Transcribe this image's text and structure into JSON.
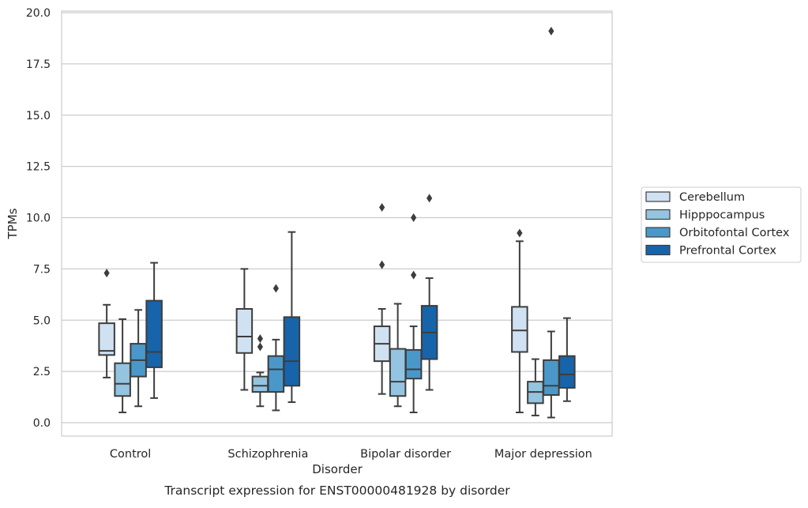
{
  "chart_data": {
    "type": "box",
    "title": "",
    "caption": "Transcript expression for ENST00000481928 by disorder",
    "xlabel": "Disorder",
    "ylabel": "TPMs",
    "ylim": [
      -0.65,
      20.2
    ],
    "yticks": [
      0.0,
      2.5,
      5.0,
      7.5,
      10.0,
      12.5,
      15.0,
      17.5,
      20.0
    ],
    "ytick_labels": [
      "0.0",
      "2.5",
      "5.0",
      "7.5",
      "10.0",
      "12.5",
      "15.0",
      "17.5",
      "20.0"
    ],
    "grid": "horizontal",
    "legend_position": "right",
    "categories": [
      "Control",
      "Schizophrenia",
      "Bipolar disorder",
      "Major depression"
    ],
    "series": [
      {
        "name": "Cerebellum",
        "color": "#d0e1f2",
        "boxes": [
          {
            "whislo": 2.2,
            "q1": 3.3,
            "med": 3.5,
            "q3": 4.85,
            "whishi": 5.75,
            "fliers": [
              7.3
            ]
          },
          {
            "whislo": 1.6,
            "q1": 3.4,
            "med": 4.2,
            "q3": 5.55,
            "whishi": 7.5,
            "fliers": []
          },
          {
            "whislo": 1.4,
            "q1": 3.0,
            "med": 3.85,
            "q3": 4.7,
            "whishi": 5.55,
            "fliers": [
              7.7,
              10.5
            ]
          },
          {
            "whislo": 0.5,
            "q1": 3.45,
            "med": 4.5,
            "q3": 5.65,
            "whishi": 8.85,
            "fliers": [
              9.25
            ]
          }
        ]
      },
      {
        "name": "Hipppocampus",
        "color": "#94c4df",
        "boxes": [
          {
            "whislo": 0.5,
            "q1": 1.3,
            "med": 1.9,
            "q3": 2.9,
            "whishi": 5.05,
            "fliers": []
          },
          {
            "whislo": 0.8,
            "q1": 1.5,
            "med": 1.8,
            "q3": 2.25,
            "whishi": 2.45,
            "fliers": [
              3.7,
              4.1
            ]
          },
          {
            "whislo": 0.8,
            "q1": 1.3,
            "med": 2.0,
            "q3": 3.6,
            "whishi": 5.8,
            "fliers": []
          },
          {
            "whislo": 0.35,
            "q1": 0.95,
            "med": 1.5,
            "q3": 2.0,
            "whishi": 3.1,
            "fliers": []
          }
        ]
      },
      {
        "name": "Orbitofontal Cortex",
        "color": "#4a98c9",
        "boxes": [
          {
            "whislo": 0.8,
            "q1": 2.25,
            "med": 3.05,
            "q3": 3.85,
            "whishi": 5.5,
            "fliers": []
          },
          {
            "whislo": 0.6,
            "q1": 1.5,
            "med": 2.6,
            "q3": 3.25,
            "whishi": 4.05,
            "fliers": [
              6.55
            ]
          },
          {
            "whislo": 0.5,
            "q1": 2.15,
            "med": 2.6,
            "q3": 3.55,
            "whishi": 4.7,
            "fliers": [
              7.2,
              10.0
            ]
          },
          {
            "whislo": 0.25,
            "q1": 1.35,
            "med": 1.8,
            "q3": 3.05,
            "whishi": 4.45,
            "fliers": [
              19.1
            ]
          }
        ]
      },
      {
        "name": "Prefrontal Cortex",
        "color": "#1764ab",
        "boxes": [
          {
            "whislo": 1.2,
            "q1": 2.7,
            "med": 3.45,
            "q3": 5.95,
            "whishi": 7.8,
            "fliers": []
          },
          {
            "whislo": 1.0,
            "q1": 1.8,
            "med": 3.0,
            "q3": 5.15,
            "whishi": 9.3,
            "fliers": []
          },
          {
            "whislo": 1.6,
            "q1": 3.1,
            "med": 4.4,
            "q3": 5.7,
            "whishi": 7.05,
            "fliers": [
              10.95
            ]
          },
          {
            "whislo": 1.05,
            "q1": 1.7,
            "med": 2.35,
            "q3": 3.25,
            "whishi": 5.1,
            "fliers": []
          }
        ]
      }
    ]
  }
}
